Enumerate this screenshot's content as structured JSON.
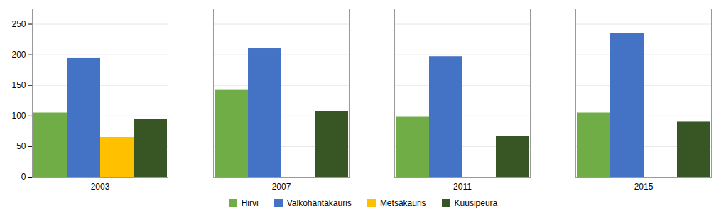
{
  "chart_data": {
    "type": "bar",
    "categories": [
      "2003",
      "2007",
      "2011",
      "2015"
    ],
    "series": [
      {
        "name": "Hirvi",
        "color": "#70AD47",
        "values": [
          105,
          142,
          98,
          105
        ]
      },
      {
        "name": "Valkohäntäkauris",
        "color": "#4472C4",
        "values": [
          195,
          210,
          197,
          235
        ]
      },
      {
        "name": "Metsäkauris",
        "color": "#FFC000",
        "values": [
          65,
          0,
          0,
          0
        ]
      },
      {
        "name": "Kuusipeura",
        "color": "#375623",
        "values": [
          95,
          107,
          67,
          90
        ]
      }
    ],
    "ylim": [
      0,
      275
    ],
    "yticks": [
      0,
      50,
      100,
      150,
      200,
      250
    ],
    "grid": true,
    "legend": "bottom"
  }
}
